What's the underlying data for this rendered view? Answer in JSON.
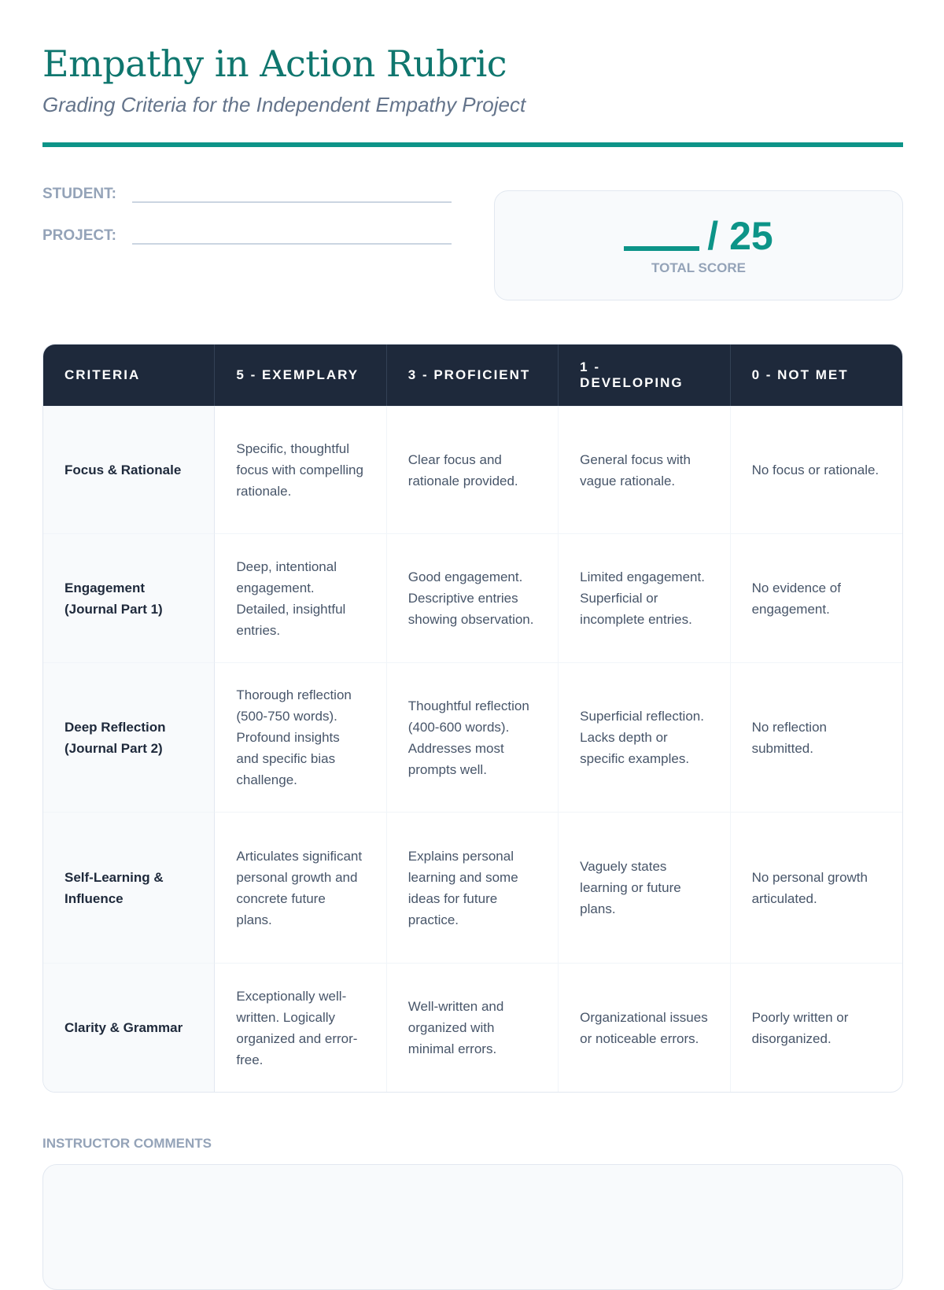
{
  "header": {
    "title": "Empathy in Action Rubric",
    "subtitle": "Grading Criteria for the Independent Empathy Project"
  },
  "fields": {
    "student_label": "STUDENT:",
    "project_label": "PROJECT:"
  },
  "score": {
    "total": "/ 25",
    "label": "TOTAL SCORE"
  },
  "table": {
    "headers": [
      "CRITERIA",
      "5 - EXEMPLARY",
      "3 - PROFICIENT",
      "1 - DEVELOPING",
      "0 - NOT MET"
    ],
    "rows": [
      [
        "Focus & Rationale",
        "Specific, thoughtful focus with compelling rationale.",
        "Clear focus and rationale provided.",
        "General focus with vague rationale.",
        "No focus or rationale."
      ],
      [
        "Engagement (Journal Part 1)",
        "Deep, intentional engagement. Detailed, insightful entries.",
        "Good engagement. Descriptive entries showing observation.",
        "Limited engagement. Superficial or incomplete entries.",
        "No evidence of engagement."
      ],
      [
        "Deep Reflection (Journal Part 2)",
        "Thorough reflection (500-750 words). Profound insights and specific bias challenge.",
        "Thoughtful reflection (400-600 words). Addresses most prompts well.",
        "Superficial reflection. Lacks depth or specific examples.",
        "No reflection submitted."
      ],
      [
        "Self-Learning & Influence",
        "Articulates significant personal growth and concrete future plans.",
        "Explains personal learning and some ideas for future practice.",
        "Vaguely states learning or future plans.",
        "No personal growth articulated."
      ],
      [
        "Clarity & Grammar",
        "Exceptionally well-written. Logically organized and error-free.",
        "Well-written and organized with minimal errors.",
        "Organizational issues or noticeable errors.",
        "Poorly written or disorganized."
      ]
    ]
  },
  "comments": {
    "label": "INSTRUCTOR COMMENTS"
  },
  "colors": {
    "accent": "#0d9488",
    "title": "#0f766e",
    "header_bg": "#1e293b"
  }
}
